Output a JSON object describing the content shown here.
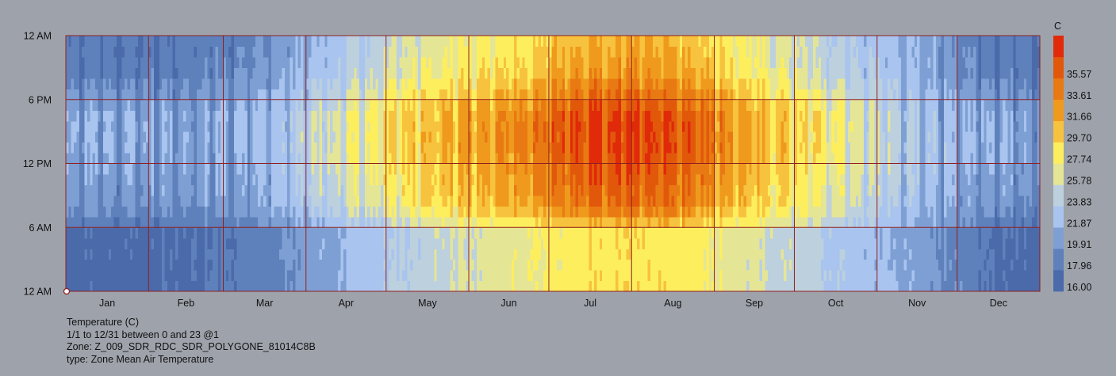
{
  "chart_data": {
    "type": "heatmap",
    "title": "Temperature (C)",
    "x": [
      "Jan",
      "Feb",
      "Mar",
      "Apr",
      "May",
      "Jun",
      "Jul",
      "Aug",
      "Sep",
      "Oct",
      "Nov",
      "Dec"
    ],
    "y_ticks": [
      "12 AM",
      "6 AM",
      "12 PM",
      "6 PM",
      "12 AM"
    ],
    "unit": "C",
    "legend": {
      "labels": [
        "16.00",
        "17.96",
        "19.91",
        "21.87",
        "23.83",
        "25.78",
        "27.74",
        "29.70",
        "31.66",
        "33.61",
        "35.57"
      ],
      "colors": [
        "#4a6aaa",
        "#5e80bb",
        "#7e9fd3",
        "#a8c4ef",
        "#bcd0de",
        "#e5e596",
        "#fdee5e",
        "#f7c23d",
        "#ef9a1c",
        "#e97a13",
        "#e2580b",
        "#e02a0a"
      ]
    },
    "monthly_profile_c": [
      {
        "month": "Jan",
        "night": 17.0,
        "day": 20.8,
        "evening": 18.5
      },
      {
        "month": "Feb",
        "night": 17.4,
        "day": 21.0,
        "evening": 18.8
      },
      {
        "month": "Mar",
        "night": 18.6,
        "day": 21.6,
        "evening": 20.0
      },
      {
        "month": "Apr",
        "night": 21.0,
        "day": 25.5,
        "evening": 23.0
      },
      {
        "month": "May",
        "night": 23.4,
        "day": 29.0,
        "evening": 26.2
      },
      {
        "month": "Jun",
        "night": 25.2,
        "day": 31.0,
        "evening": 27.8
      },
      {
        "month": "Jul",
        "night": 27.0,
        "day": 34.6,
        "evening": 30.6
      },
      {
        "month": "Aug",
        "night": 26.8,
        "day": 34.2,
        "evening": 30.2
      },
      {
        "month": "Sep",
        "night": 24.6,
        "day": 29.5,
        "evening": 26.5
      },
      {
        "month": "Oct",
        "night": 22.2,
        "day": 26.5,
        "evening": 23.6
      },
      {
        "month": "Nov",
        "night": 20.2,
        "day": 22.3,
        "evening": 21.0
      },
      {
        "month": "Dec",
        "night": 17.2,
        "day": 20.6,
        "evening": 18.6
      }
    ],
    "grid": true,
    "legend_position": "right"
  },
  "info": {
    "line1": "Temperature (C)",
    "line2": "1/1 to 12/31 between 0 and 23 @1",
    "line3": "Zone: Z_009_SDR_RDC_SDR_POLYGONE_81014C8B",
    "line4": "type: Zone Mean Air Temperature"
  }
}
